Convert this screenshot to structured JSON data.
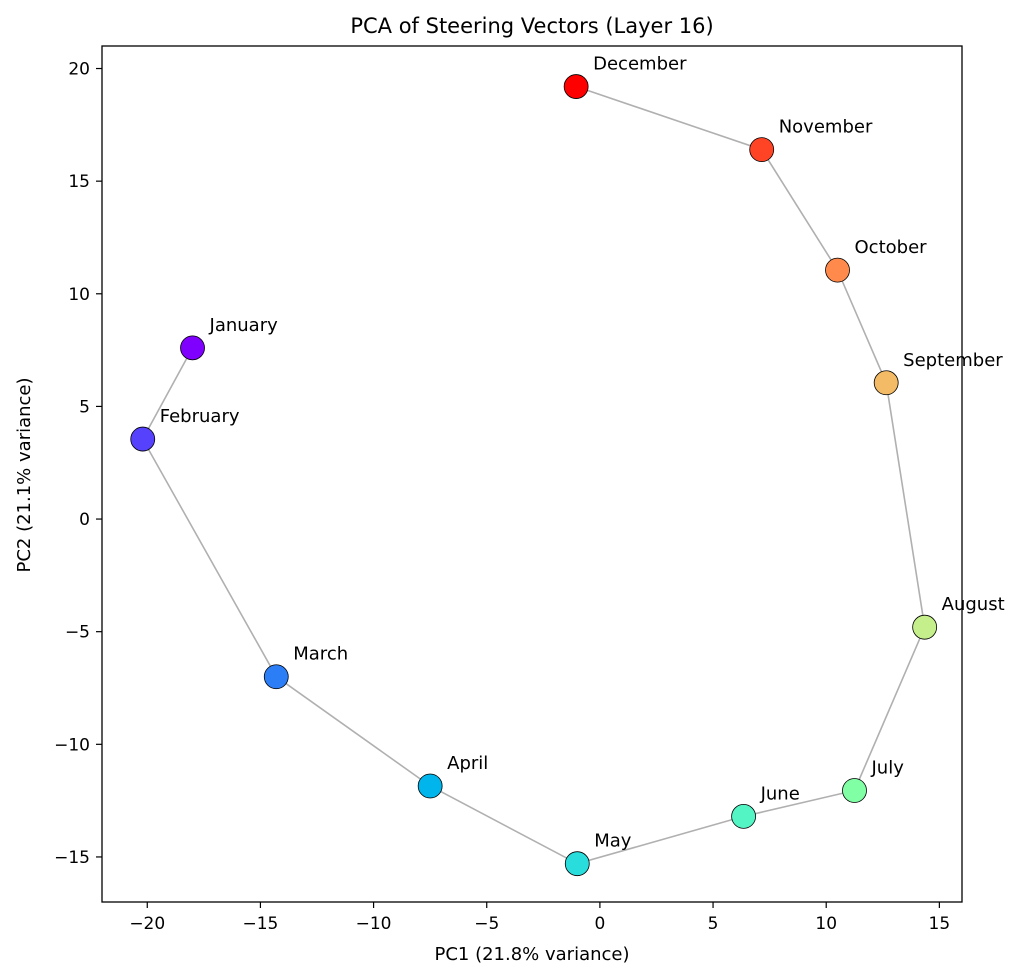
{
  "chart_data": {
    "type": "scatter",
    "title": "PCA of Steering Vectors (Layer 16)",
    "xlabel": "PC1 (21.8% variance)",
    "ylabel": "PC2 (21.1% variance)",
    "xlim": [
      -22,
      16
    ],
    "ylim": [
      -17,
      21
    ],
    "xticks": [
      -20,
      -15,
      -10,
      -5,
      0,
      5,
      10,
      15
    ],
    "yticks": [
      -15,
      -10,
      -5,
      0,
      5,
      10,
      15,
      20
    ],
    "xtick_labels": [
      "−20",
      "−15",
      "−10",
      "−5",
      "0",
      "5",
      "10",
      "15"
    ],
    "ytick_labels": [
      "−15",
      "−10",
      "−5",
      "0",
      "5",
      "10",
      "15",
      "20"
    ],
    "grid": false,
    "connect_points": true,
    "line_color": "#b0b0b0",
    "points": [
      {
        "label": "January",
        "x": -18.0,
        "y": 7.6,
        "color": "#8000ff"
      },
      {
        "label": "February",
        "x": -20.2,
        "y": 3.55,
        "color": "#5641fd"
      },
      {
        "label": "March",
        "x": -14.3,
        "y": -7.0,
        "color": "#2c7ef7"
      },
      {
        "label": "April",
        "x": -7.5,
        "y": -11.85,
        "color": "#00b5eb"
      },
      {
        "label": "May",
        "x": -1.0,
        "y": -15.3,
        "color": "#2adddd"
      },
      {
        "label": "June",
        "x": 6.35,
        "y": -13.2,
        "color": "#54f5c5"
      },
      {
        "label": "July",
        "x": 11.25,
        "y": -12.05,
        "color": "#80ffa4"
      },
      {
        "label": "August",
        "x": 14.35,
        "y": -4.8,
        "color": "#c5ef8a"
      },
      {
        "label": "September",
        "x": 12.65,
        "y": 6.05,
        "color": "#f4bb66"
      },
      {
        "label": "October",
        "x": 10.5,
        "y": 11.05,
        "color": "#ff8a4c"
      },
      {
        "label": "November",
        "x": 7.15,
        "y": 16.4,
        "color": "#ff4426"
      },
      {
        "label": "December",
        "x": -1.05,
        "y": 19.2,
        "color": "#ff0000"
      }
    ]
  }
}
